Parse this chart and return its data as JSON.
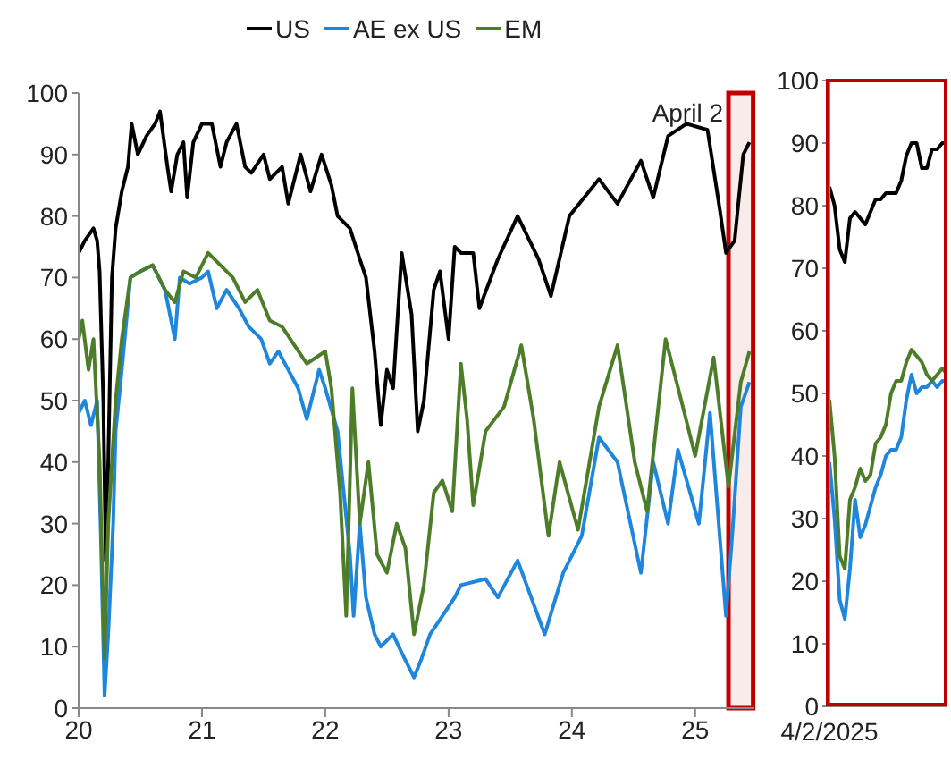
{
  "chart_data": [
    {
      "type": "line",
      "legend": "top",
      "xlim": [
        2020,
        2025.48
      ],
      "xticks": [
        {
          "value": 2020,
          "label": "20"
        },
        {
          "value": 2021,
          "label": "21"
        },
        {
          "value": 2022,
          "label": "22"
        },
        {
          "value": 2023,
          "label": "23"
        },
        {
          "value": 2024,
          "label": "24"
        },
        {
          "value": 2025,
          "label": "25"
        }
      ],
      "ylim": [
        0,
        100
      ],
      "yticks": [
        0,
        10,
        20,
        30,
        40,
        50,
        60,
        70,
        80,
        90,
        100
      ],
      "bands": [
        {
          "axis": "x",
          "from": 2025.27,
          "to": 2025.47,
          "label": "April 2",
          "color": "#c00000"
        }
      ],
      "series": [
        {
          "name": "US",
          "color": "#000000",
          "x": [
            2020.0,
            2020.05,
            2020.12,
            2020.15,
            2020.17,
            2020.2,
            2020.22,
            2020.24,
            2020.27,
            2020.3,
            2020.35,
            2020.4,
            2020.43,
            2020.48,
            2020.55,
            2020.62,
            2020.66,
            2020.72,
            2020.75,
            2020.8,
            2020.85,
            2020.88,
            2020.93,
            2021.0,
            2021.08,
            2021.15,
            2021.2,
            2021.28,
            2021.35,
            2021.4,
            2021.5,
            2021.55,
            2021.65,
            2021.7,
            2021.8,
            2021.88,
            2021.97,
            2022.05,
            2022.1,
            2022.2,
            2022.28,
            2022.33,
            2022.4,
            2022.45,
            2022.5,
            2022.55,
            2022.62,
            2022.7,
            2022.75,
            2022.8,
            2022.88,
            2022.93,
            2023.0,
            2023.05,
            2023.1,
            2023.2,
            2023.25,
            2023.4,
            2023.56,
            2023.73,
            2023.83,
            2023.98,
            2024.22,
            2024.37,
            2024.56,
            2024.66,
            2024.78,
            2024.93,
            2025.1,
            2025.2,
            2025.25,
            2025.32,
            2025.39,
            2025.44
          ],
          "values": [
            74,
            76,
            78,
            76,
            71,
            50,
            24,
            40,
            70,
            78,
            84,
            88,
            95,
            90,
            93,
            95,
            97,
            88,
            84,
            90,
            92,
            83,
            92,
            95,
            95,
            88,
            92,
            95,
            88,
            87,
            90,
            86,
            88,
            82,
            90,
            84,
            90,
            85,
            80,
            78,
            73,
            70,
            58,
            46,
            55,
            52,
            74,
            64,
            45,
            50,
            68,
            71,
            60,
            75,
            74,
            74,
            65,
            73,
            80,
            73,
            67,
            80,
            86,
            82,
            89,
            83,
            93,
            95,
            94,
            81,
            74,
            76,
            90,
            92
          ]
        },
        {
          "name": "AE ex US",
          "color": "#1f86de",
          "x": [
            2020.0,
            2020.05,
            2020.1,
            2020.15,
            2020.18,
            2020.21,
            2020.24,
            2020.28,
            2020.3,
            2020.35,
            2020.42,
            2020.5,
            2020.6,
            2020.7,
            2020.78,
            2020.82,
            2020.9,
            2021.0,
            2021.05,
            2021.12,
            2021.2,
            2021.3,
            2021.38,
            2021.48,
            2021.55,
            2021.62,
            2021.7,
            2021.78,
            2021.85,
            2021.95,
            2022.0,
            2022.1,
            2022.15,
            2022.2,
            2022.23,
            2022.28,
            2022.33,
            2022.4,
            2022.45,
            2022.55,
            2022.62,
            2022.72,
            2022.78,
            2022.85,
            2022.95,
            2023.05,
            2023.1,
            2023.3,
            2023.4,
            2023.56,
            2023.78,
            2023.93,
            2024.08,
            2024.22,
            2024.37,
            2024.56,
            2024.66,
            2024.78,
            2024.86,
            2025.03,
            2025.12,
            2025.25,
            2025.3,
            2025.37,
            2025.44
          ],
          "values": [
            48,
            50,
            46,
            50,
            28,
            2,
            12,
            30,
            45,
            55,
            70,
            71,
            72,
            68,
            60,
            70,
            69,
            70,
            71,
            65,
            68,
            65,
            62,
            60,
            56,
            58,
            55,
            52,
            47,
            55,
            52,
            45,
            35,
            25,
            15,
            30,
            18,
            12,
            10,
            12,
            9,
            5,
            8,
            12,
            15,
            18,
            20,
            21,
            18,
            24,
            12,
            22,
            28,
            44,
            40,
            22,
            40,
            30,
            42,
            30,
            48,
            15,
            28,
            49,
            53
          ]
        },
        {
          "name": "EM",
          "color": "#4e7d2a",
          "x": [
            2020.0,
            2020.03,
            2020.08,
            2020.12,
            2020.17,
            2020.21,
            2020.24,
            2020.3,
            2020.35,
            2020.42,
            2020.5,
            2020.6,
            2020.7,
            2020.78,
            2020.85,
            2020.95,
            2021.05,
            2021.15,
            2021.25,
            2021.35,
            2021.45,
            2021.55,
            2021.65,
            2021.75,
            2021.85,
            2022.0,
            2022.05,
            2022.12,
            2022.17,
            2022.22,
            2022.28,
            2022.35,
            2022.42,
            2022.5,
            2022.58,
            2022.65,
            2022.72,
            2022.8,
            2022.88,
            2022.95,
            2023.03,
            2023.1,
            2023.15,
            2023.2,
            2023.3,
            2023.45,
            2023.59,
            2023.69,
            2023.81,
            2023.9,
            2024.05,
            2024.22,
            2024.37,
            2024.51,
            2024.61,
            2024.76,
            2024.9,
            2025.0,
            2025.15,
            2025.27,
            2025.37,
            2025.44
          ],
          "values": [
            60,
            63,
            55,
            60,
            40,
            8,
            30,
            50,
            60,
            70,
            71,
            72,
            68,
            66,
            71,
            70,
            74,
            72,
            70,
            66,
            68,
            63,
            62,
            59,
            56,
            58,
            52,
            35,
            15,
            52,
            30,
            40,
            25,
            22,
            30,
            26,
            12,
            20,
            35,
            37,
            32,
            56,
            47,
            33,
            45,
            49,
            59,
            47,
            28,
            40,
            29,
            49,
            59,
            40,
            32,
            60,
            49,
            41,
            57,
            36,
            53,
            58
          ]
        }
      ]
    },
    {
      "type": "line",
      "categories": [
        null,
        null,
        null,
        null,
        null,
        null,
        null,
        null,
        null,
        null,
        null,
        null,
        null,
        null,
        null,
        null,
        null,
        null,
        null,
        null,
        null,
        null,
        null,
        null
      ],
      "annotations": [
        "4/2/2025"
      ],
      "ylim": [
        0,
        100
      ],
      "yticks": [
        0,
        10,
        20,
        30,
        40,
        50,
        60,
        70,
        80,
        90,
        100
      ],
      "series": [
        {
          "color": "#000000",
          "values": [
            83,
            80,
            73,
            71,
            78,
            79,
            78,
            77,
            79,
            81,
            81,
            82,
            82,
            82,
            84,
            88,
            90,
            90,
            86,
            86,
            89,
            89,
            90,
            90
          ]
        },
        {
          "color": "#1f86de",
          "values": [
            39,
            30,
            17,
            14,
            22,
            33,
            27,
            29,
            32,
            35,
            37,
            40,
            41,
            41,
            43,
            49,
            53,
            50,
            51,
            51,
            52,
            51,
            52,
            52
          ]
        },
        {
          "color": "#4e7d2a",
          "values": [
            49,
            40,
            24,
            22,
            33,
            35,
            38,
            36,
            37,
            42,
            43,
            45,
            50,
            52,
            52,
            55,
            57,
            56,
            55,
            53,
            52,
            53,
            54,
            53
          ]
        }
      ]
    }
  ]
}
